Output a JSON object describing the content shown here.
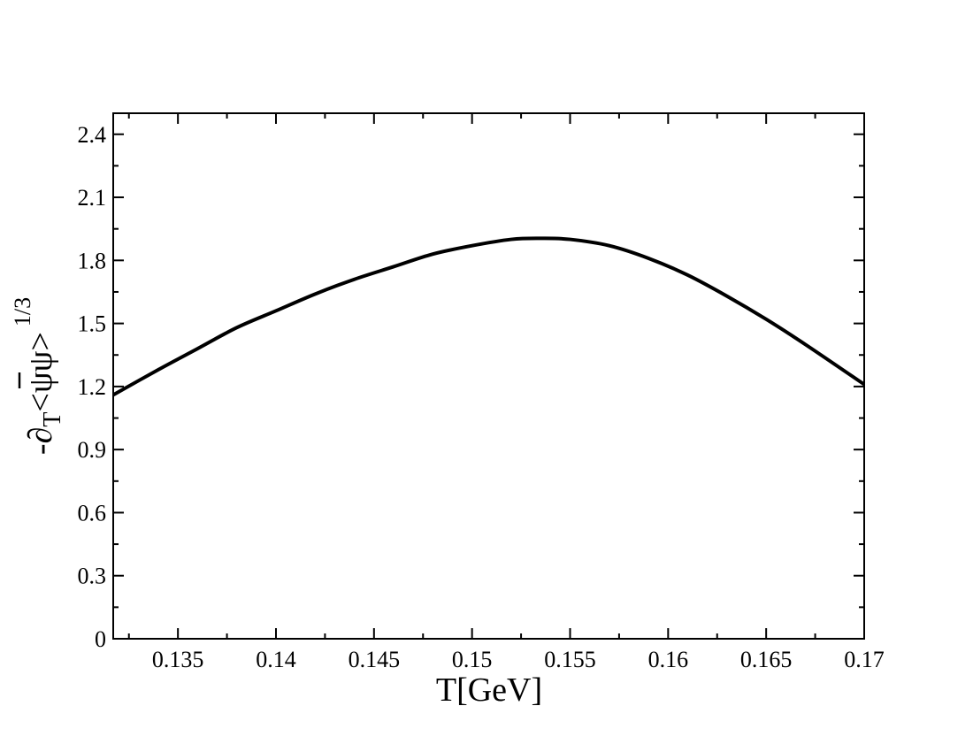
{
  "chart_data": {
    "type": "line",
    "title": "",
    "xlabel": "T[GeV]",
    "ylabel": {
      "prefix": "-∂",
      "subscript": "T",
      "body": "<ψψ>",
      "overline_char": "ψ",
      "superscript": "1/3"
    },
    "xlim": [
      0.1317,
      0.17
    ],
    "ylim": [
      0,
      2.5
    ],
    "x_ticks": [
      0.135,
      0.14,
      0.145,
      0.15,
      0.155,
      0.16,
      0.165,
      0.17
    ],
    "x_tick_labels": [
      "0.135",
      "0.14",
      "0.145",
      "0.15",
      "0.155",
      "0.16",
      "0.165",
      "0.17"
    ],
    "y_ticks": [
      0,
      0.3,
      0.6,
      0.9,
      1.2,
      1.5,
      1.8,
      2.1,
      2.4
    ],
    "y_tick_labels": [
      "0",
      "0.3",
      "0.6",
      "0.9",
      "1.2",
      "1.5",
      "1.8",
      "2.1",
      "2.4"
    ],
    "grid": false,
    "series": [
      {
        "x": [
          0.1317,
          0.134,
          0.136,
          0.138,
          0.14,
          0.142,
          0.144,
          0.146,
          0.148,
          0.15,
          0.152,
          0.1535,
          0.155,
          0.157,
          0.159,
          0.161,
          0.163,
          0.165,
          0.167,
          0.17
        ],
        "y": [
          1.16,
          1.28,
          1.38,
          1.48,
          1.56,
          1.64,
          1.71,
          1.77,
          1.83,
          1.87,
          1.9,
          1.905,
          1.9,
          1.87,
          1.81,
          1.73,
          1.63,
          1.52,
          1.4,
          1.21
        ]
      }
    ]
  }
}
